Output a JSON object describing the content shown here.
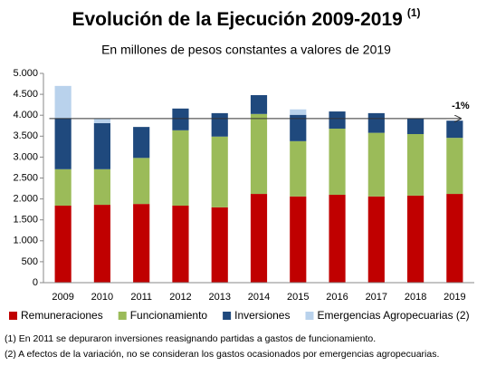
{
  "chart_data": {
    "type": "stacked_bar",
    "title": "Evolución de la Ejecución 2009-2019",
    "title_superscript": "(1)",
    "subtitle": "En millones de pesos constantes a valores de 2019",
    "categories": [
      "2009",
      "2010",
      "2011",
      "2012",
      "2013",
      "2014",
      "2015",
      "2016",
      "2017",
      "2018",
      "2019"
    ],
    "series": [
      {
        "name": "Remuneraciones",
        "color": "#c00000",
        "values": [
          1840,
          1860,
          1880,
          1840,
          1800,
          2120,
          2060,
          2100,
          2060,
          2080,
          2120
        ]
      },
      {
        "name": "Funcionamiento",
        "color": "#9bbb59",
        "values": [
          870,
          850,
          1100,
          1800,
          1690,
          1910,
          1320,
          1580,
          1520,
          1470,
          1340
        ]
      },
      {
        "name": "Inversiones",
        "color": "#1f497d",
        "values": [
          1210,
          1100,
          740,
          520,
          560,
          450,
          630,
          410,
          470,
          370,
          410
        ]
      },
      {
        "name": "Emergencias Agropecuarias (2)",
        "color": "#b9d2ec",
        "values": [
          780,
          110,
          0,
          0,
          0,
          0,
          130,
          0,
          0,
          0,
          0
        ]
      }
    ],
    "ylim": [
      0,
      5000
    ],
    "yticks": [
      0,
      {
        "value": 500,
        "label": "500"
      },
      {
        "value": 1000,
        "label": "1.000"
      },
      {
        "value": 1500,
        "label": "1.500"
      },
      {
        "value": 2000,
        "label": "2.000"
      },
      {
        "value": 2500,
        "label": "2.500"
      },
      {
        "value": 3000,
        "label": "3.000"
      },
      {
        "value": 3500,
        "label": "3.500"
      },
      {
        "value": 4000,
        "label": "4.000"
      },
      {
        "value": 4500,
        "label": "4.500"
      },
      {
        "value": 5000,
        "label": "5.000"
      }
    ],
    "reference_line": {
      "value": 3920,
      "label": "-1%"
    },
    "grid": false,
    "footnotes": [
      "(1) En 2011 se depuraron inversiones reasignando partidas a gastos de funcionamiento.",
      "(2) A efectos de la variación, no se consideran los  gastos ocasionados por emergencias agropecuarias."
    ]
  }
}
